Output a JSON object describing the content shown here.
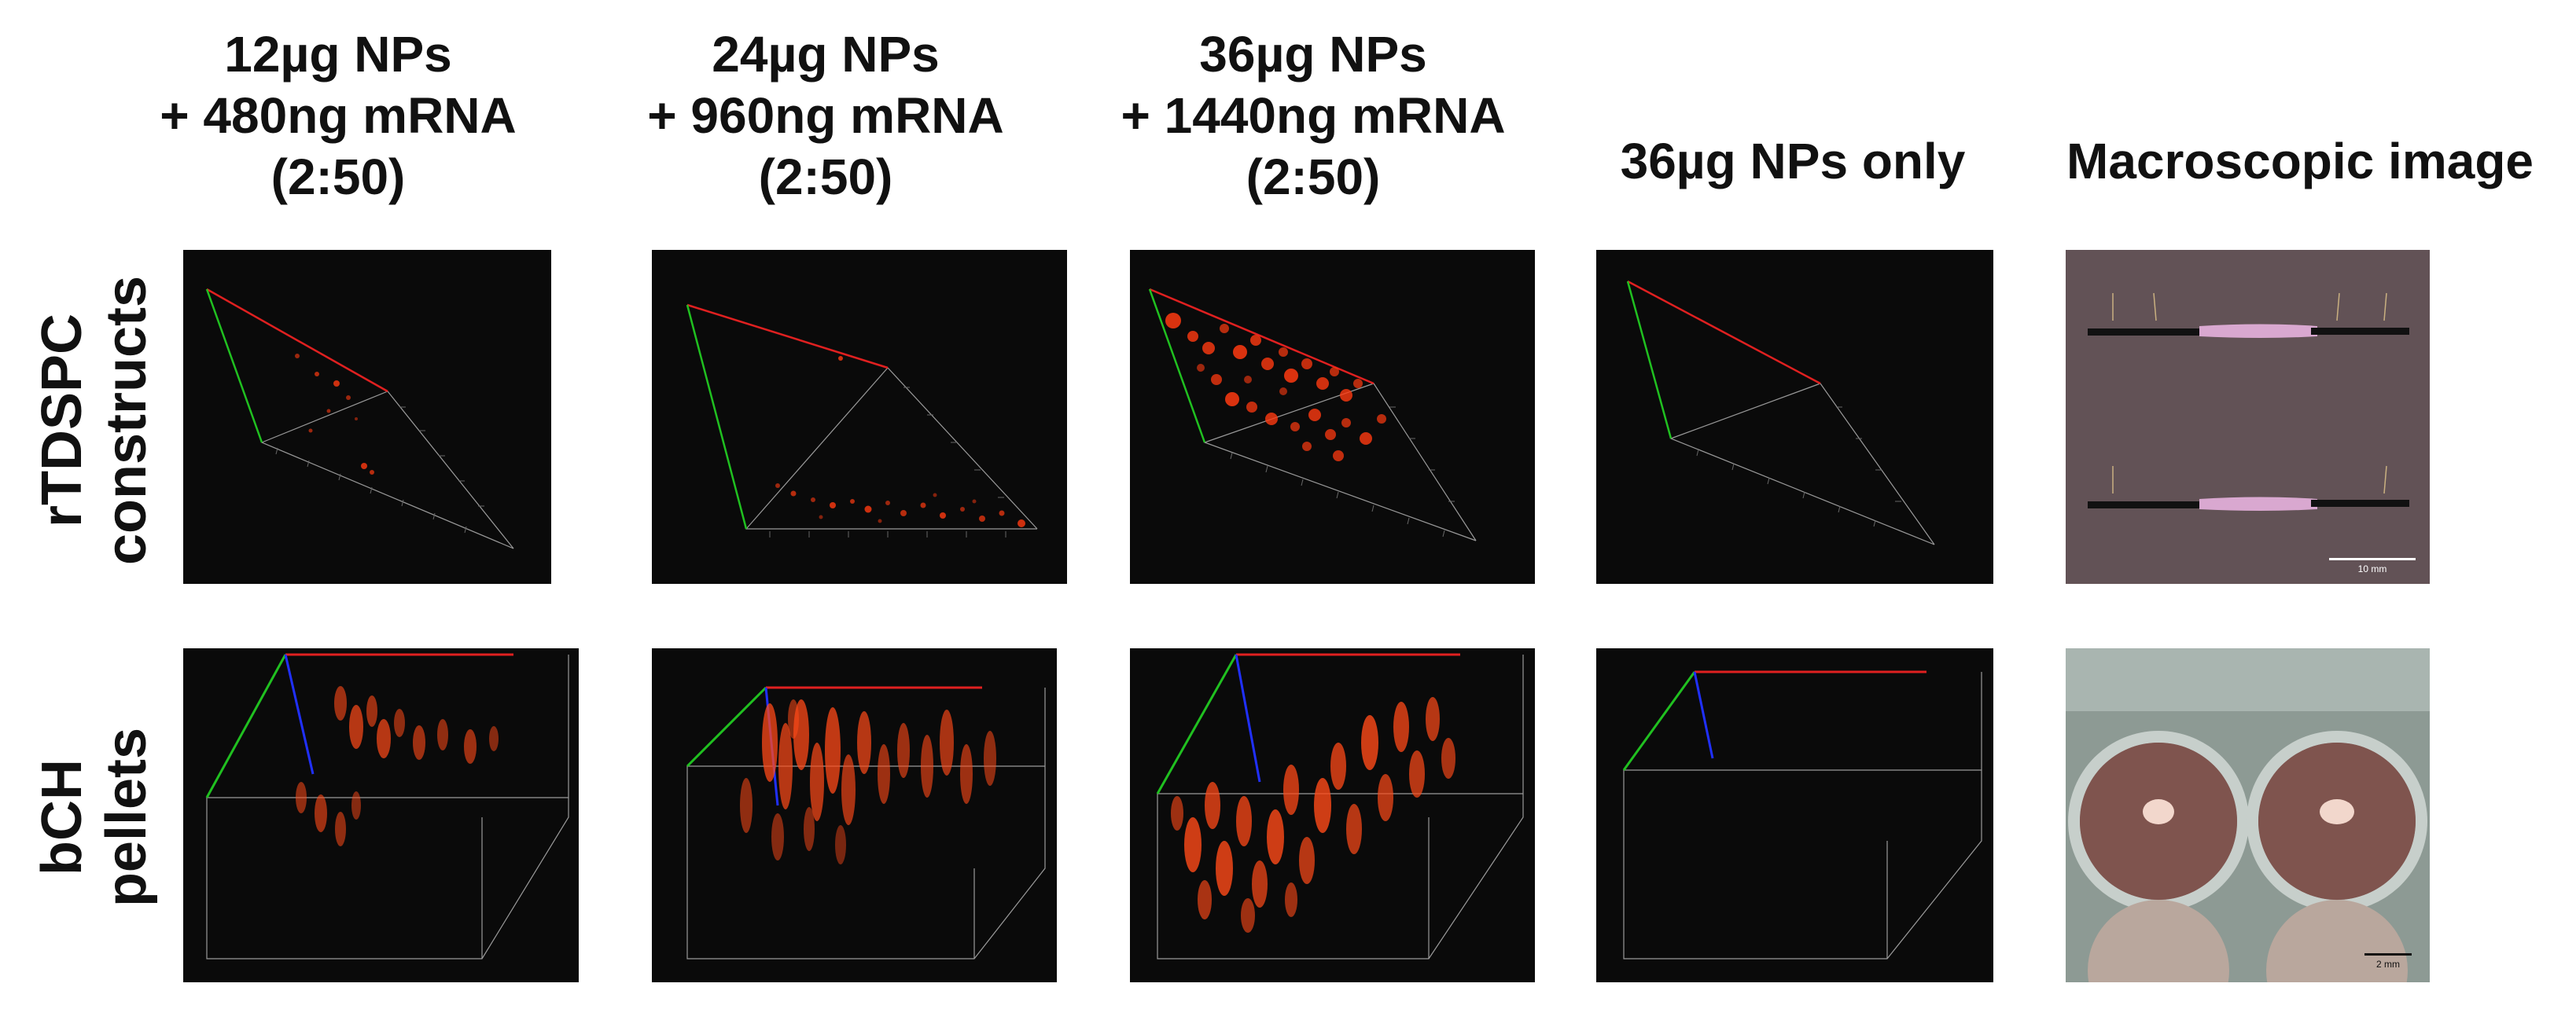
{
  "columns": [
    {
      "line1": "12µg NPs",
      "line2": "+ 480ng mRNA",
      "line3": "(2:50)"
    },
    {
      "line1": "24µg NPs",
      "line2": "+ 960ng mRNA",
      "line3": "(2:50)"
    },
    {
      "line1": "36µg NPs",
      "line2": "+ 1440ng mRNA",
      "line3": "(2:50)"
    },
    {
      "line1": "36µg NPs only"
    },
    {
      "line1": "Macroscopic image"
    }
  ],
  "rows": [
    {
      "line1": "rTDSPC",
      "line2": "constructs"
    },
    {
      "line1": "bCH",
      "line2": "pellets"
    }
  ],
  "scale_bars": {
    "top": "10 mm",
    "bottom": "2 mm"
  },
  "colors": {
    "signal": "#ff3a10",
    "axis_x": "#e02020",
    "axis_y": "#20c020",
    "axis_z": "#2030ff",
    "panel_bg": "#0a0a0a"
  }
}
